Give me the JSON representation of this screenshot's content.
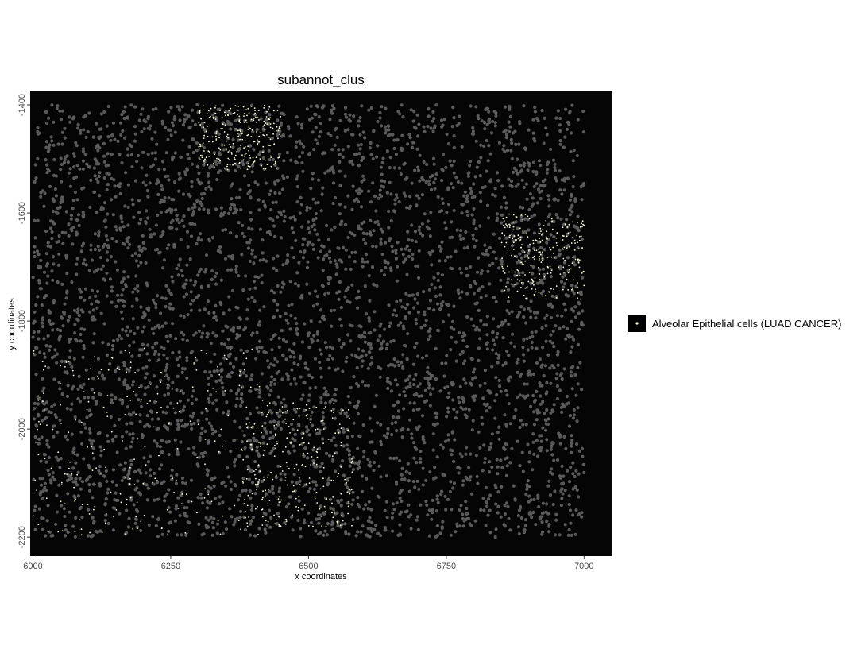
{
  "chart_data": {
    "type": "scatter",
    "title": "subannot_clus",
    "xlabel": "x coordinates",
    "ylabel": "y coordinates",
    "xlim": [
      5995,
      7050
    ],
    "ylim": [
      -2235,
      -1375
    ],
    "x_ticks": [
      6000,
      6250,
      6500,
      6750,
      7000
    ],
    "y_ticks": [
      -1400,
      -1600,
      -1800,
      -2000,
      -2200
    ],
    "panel_background": "#050505",
    "grid": false,
    "legend": {
      "placement": "right",
      "entries": [
        {
          "label": "Alveolar Epithelial cells (LUAD CANCER)",
          "color": "#ffffe0"
        }
      ]
    },
    "series": [
      {
        "name": "Alveolar Epithelial cells (LUAD CANCER)",
        "color": "#ffffe0",
        "regions": [
          {
            "x": [
              6000,
              6420
            ],
            "y": [
              -2200,
              -1850
            ]
          },
          {
            "x": [
              6300,
              6450
            ],
            "y": [
              -1520,
              -1400
            ]
          },
          {
            "x": [
              6850,
              7000
            ],
            "y": [
              -1760,
              -1600
            ]
          },
          {
            "x": [
              6380,
              6580
            ],
            "y": [
              -2180,
              -1950
            ]
          }
        ]
      },
      {
        "name": "",
        "color": "#5a5a5a",
        "regions": [
          {
            "x": [
              6000,
              7000
            ],
            "y": [
              -2200,
              -1400
            ]
          }
        ]
      }
    ]
  }
}
